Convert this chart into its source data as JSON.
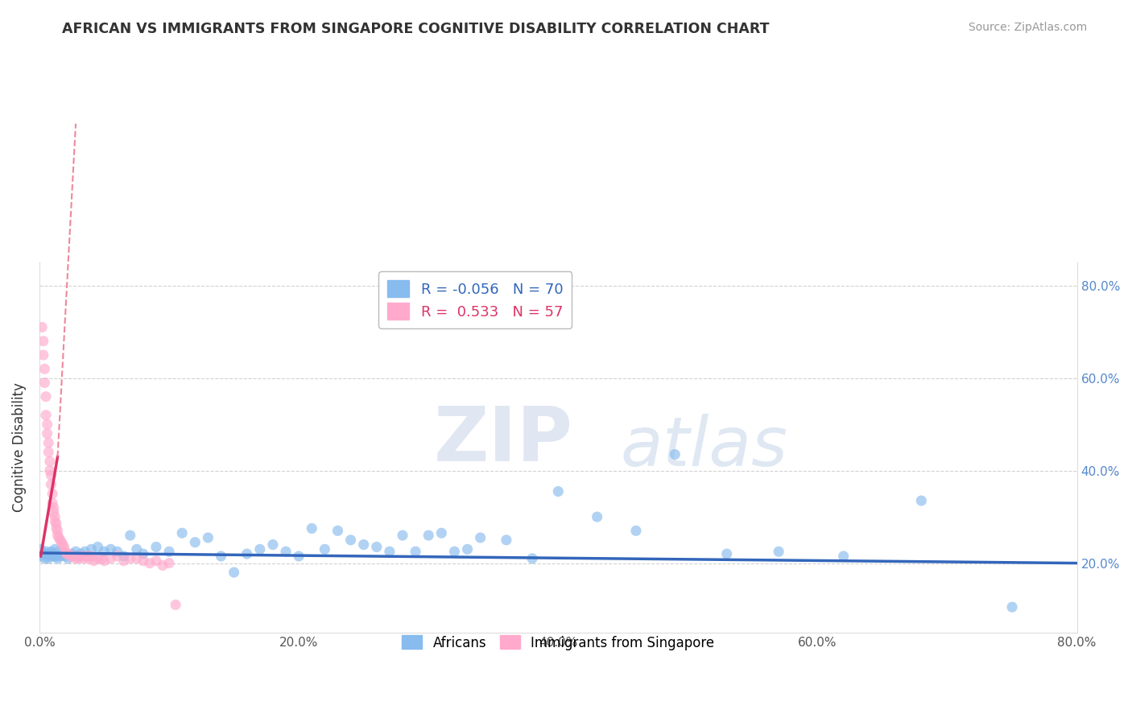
{
  "title": "AFRICAN VS IMMIGRANTS FROM SINGAPORE COGNITIVE DISABILITY CORRELATION CHART",
  "source": "Source: ZipAtlas.com",
  "ylabel": "Cognitive Disability",
  "xlim": [
    0.0,
    0.8
  ],
  "ylim": [
    0.05,
    0.85
  ],
  "xtick_labels": [
    "0.0%",
    "20.0%",
    "40.0%",
    "60.0%",
    "80.0%"
  ],
  "xtick_vals": [
    0.0,
    0.2,
    0.4,
    0.6,
    0.8
  ],
  "ytick_labels": [
    "20.0%",
    "40.0%",
    "60.0%",
    "80.0%"
  ],
  "ytick_vals": [
    0.2,
    0.4,
    0.6,
    0.8
  ],
  "blue_color": "#88bbee",
  "pink_color": "#ffaacc",
  "blue_line_color": "#3366bb",
  "pink_line_color": "#dd3366",
  "pink_dash_color": "#ee8899",
  "R_blue": -0.056,
  "N_blue": 70,
  "R_pink": 0.533,
  "N_pink": 57,
  "watermark_zip": "ZIP",
  "watermark_atlas": "atlas",
  "africans_x": [
    0.001,
    0.002,
    0.003,
    0.004,
    0.005,
    0.006,
    0.007,
    0.008,
    0.009,
    0.01,
    0.011,
    0.012,
    0.013,
    0.014,
    0.015,
    0.016,
    0.018,
    0.02,
    0.022,
    0.025,
    0.028,
    0.03,
    0.032,
    0.035,
    0.04,
    0.045,
    0.05,
    0.055,
    0.06,
    0.065,
    0.07,
    0.075,
    0.08,
    0.09,
    0.1,
    0.11,
    0.12,
    0.13,
    0.14,
    0.15,
    0.16,
    0.17,
    0.18,
    0.19,
    0.2,
    0.21,
    0.22,
    0.23,
    0.24,
    0.25,
    0.26,
    0.27,
    0.28,
    0.29,
    0.3,
    0.31,
    0.32,
    0.33,
    0.34,
    0.36,
    0.38,
    0.4,
    0.43,
    0.46,
    0.49,
    0.53,
    0.57,
    0.62,
    0.68,
    0.75
  ],
  "africans_y": [
    0.23,
    0.215,
    0.22,
    0.21,
    0.225,
    0.22,
    0.21,
    0.215,
    0.225,
    0.22,
    0.215,
    0.23,
    0.215,
    0.21,
    0.225,
    0.215,
    0.22,
    0.215,
    0.21,
    0.22,
    0.225,
    0.215,
    0.22,
    0.225,
    0.23,
    0.235,
    0.225,
    0.23,
    0.225,
    0.215,
    0.26,
    0.23,
    0.22,
    0.235,
    0.225,
    0.265,
    0.245,
    0.255,
    0.215,
    0.18,
    0.22,
    0.23,
    0.24,
    0.225,
    0.215,
    0.275,
    0.23,
    0.27,
    0.25,
    0.24,
    0.235,
    0.225,
    0.26,
    0.225,
    0.26,
    0.265,
    0.225,
    0.23,
    0.255,
    0.25,
    0.21,
    0.355,
    0.3,
    0.27,
    0.435,
    0.22,
    0.225,
    0.215,
    0.335,
    0.105
  ],
  "singapore_x": [
    0.002,
    0.003,
    0.003,
    0.004,
    0.004,
    0.005,
    0.005,
    0.006,
    0.006,
    0.007,
    0.007,
    0.008,
    0.008,
    0.009,
    0.009,
    0.01,
    0.01,
    0.011,
    0.011,
    0.012,
    0.012,
    0.013,
    0.013,
    0.014,
    0.014,
    0.015,
    0.016,
    0.017,
    0.018,
    0.019,
    0.02,
    0.021,
    0.022,
    0.024,
    0.026,
    0.028,
    0.03,
    0.032,
    0.034,
    0.036,
    0.038,
    0.04,
    0.042,
    0.045,
    0.048,
    0.05,
    0.055,
    0.06,
    0.065,
    0.07,
    0.075,
    0.08,
    0.085,
    0.09,
    0.095,
    0.1,
    0.105
  ],
  "singapore_y": [
    0.71,
    0.68,
    0.65,
    0.62,
    0.59,
    0.56,
    0.52,
    0.5,
    0.48,
    0.46,
    0.44,
    0.42,
    0.4,
    0.39,
    0.37,
    0.35,
    0.33,
    0.32,
    0.31,
    0.3,
    0.29,
    0.285,
    0.275,
    0.27,
    0.26,
    0.255,
    0.25,
    0.245,
    0.24,
    0.235,
    0.225,
    0.22,
    0.22,
    0.215,
    0.215,
    0.21,
    0.21,
    0.215,
    0.21,
    0.215,
    0.21,
    0.215,
    0.205,
    0.21,
    0.21,
    0.205,
    0.21,
    0.215,
    0.205,
    0.21,
    0.21,
    0.205,
    0.2,
    0.205,
    0.195,
    0.2,
    0.11
  ]
}
